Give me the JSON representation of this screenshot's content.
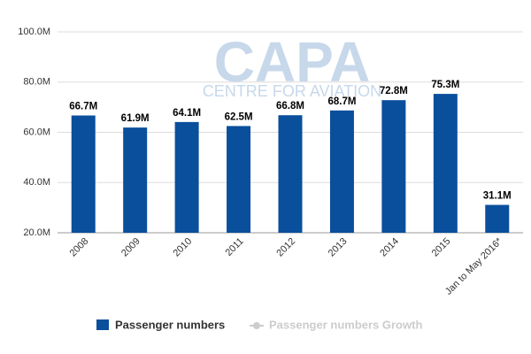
{
  "chart_data": {
    "type": "bar",
    "watermark": {
      "title": "CAPA",
      "subtitle": "CENTRE FOR AVIATION"
    },
    "categories": [
      "2008",
      "2009",
      "2010",
      "2011",
      "2012",
      "2013",
      "2014",
      "2015",
      "Jan to May 2016*"
    ],
    "series": [
      {
        "name": "Passenger numbers",
        "color": "#0a4f9c",
        "values": [
          66.7,
          61.9,
          64.1,
          62.5,
          66.8,
          68.7,
          72.8,
          75.3,
          31.1
        ],
        "value_labels": [
          "66.7M",
          "61.9M",
          "64.1M",
          "62.5M",
          "66.8M",
          "68.7M",
          "72.8M",
          "75.3M",
          "31.1M"
        ]
      },
      {
        "name": "Passenger numbers Growth",
        "color": "#cccccc",
        "values": [
          null,
          null,
          null,
          null,
          null,
          null,
          null,
          null,
          null
        ]
      }
    ],
    "ylim": [
      20,
      100
    ],
    "yticks": [
      {
        "value": 20,
        "label": "20.0M"
      },
      {
        "value": 40,
        "label": "40.0M"
      },
      {
        "value": 60,
        "label": "60.0M"
      },
      {
        "value": 80,
        "label": "80.0M"
      },
      {
        "value": 100,
        "label": "100.0M"
      }
    ],
    "grid": true,
    "legend": "bottom"
  }
}
